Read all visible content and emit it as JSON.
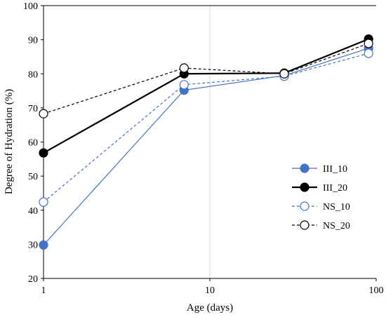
{
  "chart_data": {
    "type": "line",
    "title": "",
    "xlabel": "Age (days)",
    "ylabel": "Degree of Hydration (%)",
    "x_scale": "log",
    "xlim": [
      1,
      100
    ],
    "ylim": [
      20,
      100
    ],
    "x_ticks": [
      1,
      10,
      100
    ],
    "x_tick_labels": [
      "1",
      "10",
      "100"
    ],
    "y_ticks": [
      20,
      30,
      40,
      50,
      60,
      70,
      80,
      90,
      100
    ],
    "y_tick_labels": [
      "20",
      "30",
      "40",
      "50",
      "60",
      "70",
      "80",
      "90",
      "100"
    ],
    "vertical_gridlines": [
      10
    ],
    "legend_position": "right",
    "series": [
      {
        "name": "III_10",
        "x": [
          1,
          7,
          28,
          90
        ],
        "y": [
          29.8,
          75.2,
          79.5,
          87.5
        ],
        "color": "#4472C4",
        "dashed": false,
        "filled": true,
        "stroke_width": 1.2
      },
      {
        "name": "III_20",
        "x": [
          1,
          7,
          28,
          90
        ],
        "y": [
          56.8,
          80.0,
          80.2,
          90.2
        ],
        "color": "#000000",
        "dashed": false,
        "filled": true,
        "stroke_width": 2.2
      },
      {
        "name": "NS_10",
        "x": [
          1,
          7,
          28,
          90
        ],
        "y": [
          42.4,
          76.8,
          79.3,
          86.0
        ],
        "color": "#4472C4",
        "dashed": true,
        "filled": false,
        "stroke_width": 1.2
      },
      {
        "name": "NS_20",
        "x": [
          1,
          7,
          28,
          90
        ],
        "y": [
          68.3,
          81.7,
          80.0,
          88.9
        ],
        "color": "#000000",
        "dashed": true,
        "filled": false,
        "stroke_width": 1.2
      }
    ]
  }
}
